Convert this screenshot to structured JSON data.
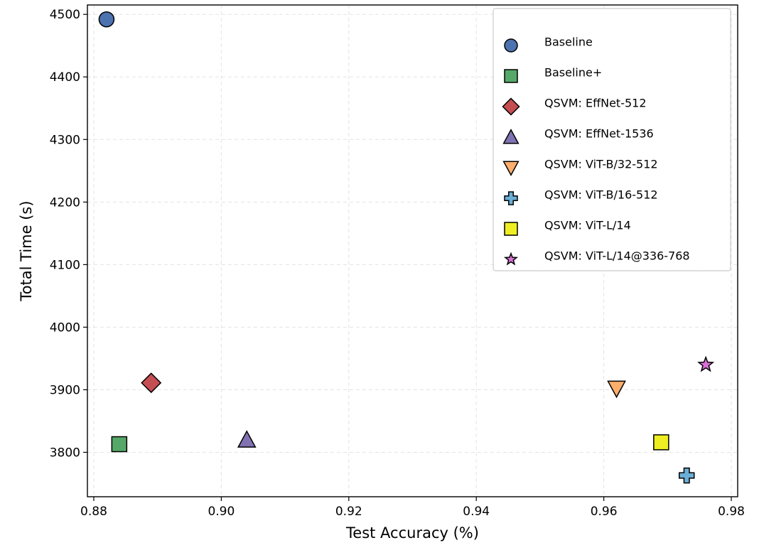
{
  "chart_data": {
    "type": "scatter",
    "title": "",
    "xlabel": "Test Accuracy (%)",
    "ylabel": "Total Time (s)",
    "xlim": [
      0.879,
      0.981
    ],
    "ylim": [
      3729,
      4515
    ],
    "xticks": [
      0.88,
      0.9,
      0.92,
      0.94,
      0.96,
      0.98
    ],
    "xtick_labels": [
      "0.88",
      "0.90",
      "0.92",
      "0.94",
      "0.96",
      "0.98"
    ],
    "yticks": [
      3800,
      3900,
      4000,
      4100,
      4200,
      4300,
      4400,
      4500
    ],
    "ytick_labels": [
      "3800",
      "3900",
      "4000",
      "4100",
      "4200",
      "4300",
      "4400",
      "4500"
    ],
    "grid": true,
    "legend_position": "top-right",
    "series": [
      {
        "name": "Baseline",
        "marker": "circle",
        "color": "#4c72b0",
        "x": 0.882,
        "y": 4492
      },
      {
        "name": "Baseline+",
        "marker": "square",
        "color": "#55a868",
        "x": 0.884,
        "y": 3813
      },
      {
        "name": "QSVM: EffNet-512",
        "marker": "diamond",
        "color": "#c44e52",
        "x": 0.889,
        "y": 3911
      },
      {
        "name": "QSVM: EffNet-1536",
        "marker": "triangle-up",
        "color": "#8172b2",
        "x": 0.904,
        "y": 3820
      },
      {
        "name": "QSVM: ViT-B/32-512",
        "marker": "triangle-down",
        "color": "#fdae6b",
        "x": 0.962,
        "y": 3902
      },
      {
        "name": "QSVM: ViT-B/16-512",
        "marker": "plus",
        "color": "#6baed6",
        "x": 0.973,
        "y": 3763
      },
      {
        "name": "QSVM: ViT-L/14",
        "marker": "square",
        "color": "#eeee22",
        "x": 0.969,
        "y": 3816
      },
      {
        "name": "QSVM: ViT-L/14@336-768",
        "marker": "star",
        "color": "#da70d6",
        "x": 0.976,
        "y": 3940
      }
    ]
  }
}
